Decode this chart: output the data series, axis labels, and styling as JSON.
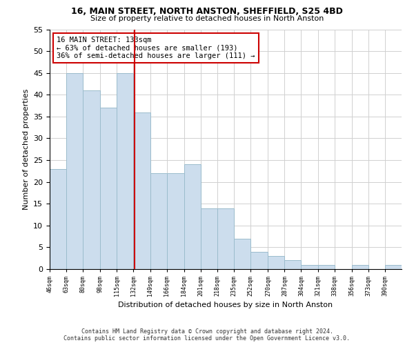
{
  "title1": "16, MAIN STREET, NORTH ANSTON, SHEFFIELD, S25 4BD",
  "title2": "Size of property relative to detached houses in North Anston",
  "xlabel": "Distribution of detached houses by size in North Anston",
  "ylabel": "Number of detached properties",
  "footnote1": "Contains HM Land Registry data © Crown copyright and database right 2024.",
  "footnote2": "Contains public sector information licensed under the Open Government Licence v3.0.",
  "annotation_line1": "16 MAIN STREET: 133sqm",
  "annotation_line2": "← 63% of detached houses are smaller (193)",
  "annotation_line3": "36% of semi-detached houses are larger (111) →",
  "property_size": 133,
  "bar_left_edges": [
    46,
    63,
    80,
    98,
    115,
    132,
    149,
    166,
    184,
    201,
    218,
    235,
    252,
    270,
    287,
    304,
    321,
    338,
    356,
    373,
    390
  ],
  "bar_heights": [
    23,
    45,
    41,
    37,
    45,
    36,
    22,
    22,
    24,
    14,
    14,
    7,
    4,
    3,
    2,
    1,
    1,
    0,
    1,
    0,
    1
  ],
  "tick_labels": [
    "46sqm",
    "63sqm",
    "80sqm",
    "98sqm",
    "115sqm",
    "132sqm",
    "149sqm",
    "166sqm",
    "184sqm",
    "201sqm",
    "218sqm",
    "235sqm",
    "252sqm",
    "270sqm",
    "287sqm",
    "304sqm",
    "321sqm",
    "338sqm",
    "356sqm",
    "373sqm",
    "390sqm"
  ],
  "bar_color": "#ccdded",
  "bar_edge_color": "#9bbccc",
  "vline_x": 133,
  "vline_color": "#cc0000",
  "ylim": [
    0,
    55
  ],
  "yticks": [
    0,
    5,
    10,
    15,
    20,
    25,
    30,
    35,
    40,
    45,
    50,
    55
  ],
  "grid_color": "#d0d0d0",
  "annotation_box_color": "#cc0000",
  "bg_color": "#ffffff"
}
